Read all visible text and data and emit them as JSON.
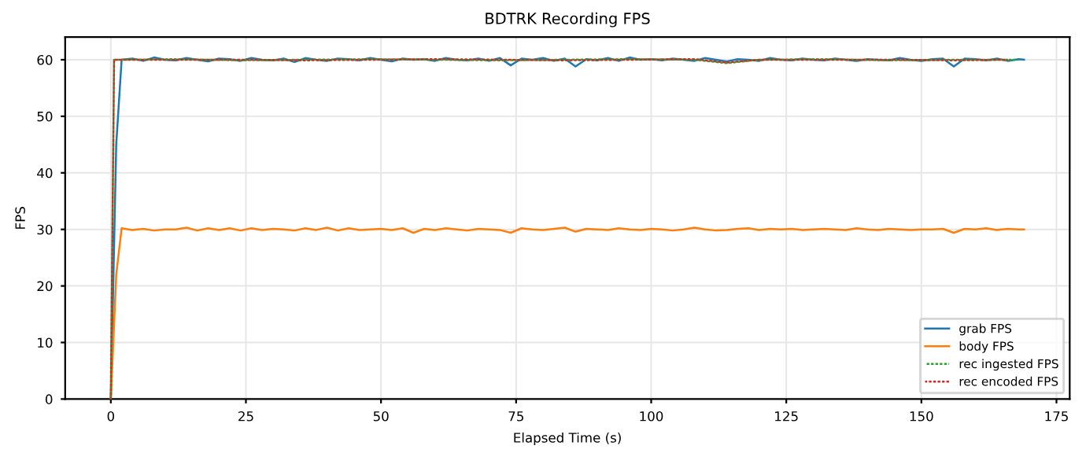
{
  "chart_data": {
    "type": "line",
    "title": "BDTRK Recording FPS",
    "xlabel": "Elapsed Time (s)",
    "ylabel": "FPS",
    "xlim": [
      -8.45,
      177.45
    ],
    "xticks": [
      0,
      25,
      50,
      75,
      100,
      125,
      150,
      175
    ],
    "ylim": [
      0,
      64
    ],
    "yticks": [
      0,
      10,
      20,
      30,
      40,
      50,
      60
    ],
    "grid": true,
    "legend": "bottom right",
    "series": [
      {
        "name": "grab FPS",
        "color": "#1f77b4",
        "line_style": "solid",
        "x": [
          0,
          1,
          2,
          4,
          6,
          8,
          10,
          12,
          14,
          16,
          18,
          20,
          22,
          24,
          26,
          28,
          30,
          32,
          34,
          36,
          38,
          40,
          42,
          44,
          46,
          48,
          50,
          52,
          54,
          56,
          58,
          60,
          62,
          64,
          66,
          68,
          70,
          72,
          74,
          76,
          78,
          80,
          82,
          84,
          86,
          88,
          90,
          92,
          94,
          96,
          98,
          100,
          102,
          104,
          106,
          108,
          110,
          112,
          114,
          116,
          118,
          120,
          122,
          124,
          126,
          128,
          130,
          132,
          134,
          136,
          138,
          140,
          142,
          144,
          146,
          148,
          150,
          152,
          154,
          156,
          158,
          160,
          162,
          164,
          166,
          168,
          169
        ],
        "values": [
          0,
          45,
          60.0,
          60.2,
          59.8,
          60.4,
          60.0,
          59.9,
          60.3,
          60.0,
          59.7,
          60.2,
          60.1,
          59.8,
          60.3,
          60.0,
          59.9,
          60.2,
          59.6,
          60.3,
          60.0,
          59.8,
          60.2,
          60.1,
          59.9,
          60.3,
          60.0,
          59.7,
          60.2,
          60.0,
          60.1,
          59.8,
          60.3,
          60.0,
          59.9,
          60.2,
          59.8,
          60.3,
          59.0,
          60.2,
          60.0,
          60.3,
          59.8,
          60.2,
          58.8,
          60.1,
          59.9,
          60.3,
          59.8,
          60.4,
          60.0,
          60.1,
          59.9,
          60.2,
          60.0,
          59.8,
          60.3,
          60.0,
          59.7,
          60.1,
          60.0,
          59.8,
          60.3,
          60.0,
          59.9,
          60.2,
          60.0,
          59.9,
          60.2,
          60.0,
          59.8,
          60.1,
          60.0,
          59.9,
          60.3,
          60.0,
          59.8,
          60.1,
          60.2,
          58.8,
          60.2,
          60.1,
          59.9,
          60.2,
          59.8,
          60.1,
          60.0
        ]
      },
      {
        "name": "body FPS",
        "color": "#ff7f0e",
        "line_style": "solid",
        "x": [
          0,
          1,
          2,
          4,
          6,
          8,
          10,
          12,
          14,
          16,
          18,
          20,
          22,
          24,
          26,
          28,
          30,
          32,
          34,
          36,
          38,
          40,
          42,
          44,
          46,
          48,
          50,
          52,
          54,
          56,
          58,
          60,
          62,
          64,
          66,
          68,
          70,
          72,
          74,
          76,
          78,
          80,
          82,
          84,
          86,
          88,
          90,
          92,
          94,
          96,
          98,
          100,
          102,
          104,
          106,
          108,
          110,
          112,
          114,
          116,
          118,
          120,
          122,
          124,
          126,
          128,
          130,
          132,
          134,
          136,
          138,
          140,
          142,
          144,
          146,
          148,
          150,
          152,
          154,
          156,
          158,
          160,
          162,
          164,
          166,
          168,
          169
        ],
        "values": [
          0,
          22,
          30.2,
          29.9,
          30.1,
          29.8,
          30.0,
          30.0,
          30.3,
          29.8,
          30.2,
          29.9,
          30.2,
          29.8,
          30.2,
          29.9,
          30.1,
          30.0,
          29.8,
          30.2,
          29.9,
          30.3,
          29.8,
          30.2,
          29.9,
          30.0,
          30.1,
          29.9,
          30.2,
          29.4,
          30.1,
          29.9,
          30.2,
          30.0,
          29.8,
          30.1,
          30.0,
          29.9,
          29.4,
          30.2,
          30.0,
          29.9,
          30.1,
          30.3,
          29.6,
          30.1,
          30.0,
          29.9,
          30.2,
          30.0,
          29.9,
          30.1,
          30.0,
          29.8,
          30.0,
          30.3,
          30.0,
          29.8,
          29.9,
          30.1,
          30.2,
          29.9,
          30.1,
          30.0,
          30.1,
          29.9,
          30.0,
          30.1,
          30.0,
          29.9,
          30.2,
          30.0,
          29.9,
          30.1,
          30.0,
          29.9,
          30.0,
          30.0,
          30.1,
          29.4,
          30.1,
          30.0,
          30.2,
          29.9,
          30.1,
          30.0,
          30.0
        ]
      },
      {
        "name": "rec ingested FPS",
        "color": "#2ca02c",
        "line_style": "dashed",
        "x": [
          0,
          0.6,
          2,
          12,
          24,
          36,
          48,
          60,
          72,
          84,
          96,
          108,
          114,
          120,
          132,
          144,
          156,
          168
        ],
        "values": [
          0,
          60.0,
          60.0,
          60.1,
          59.9,
          60.0,
          60.1,
          60.0,
          59.9,
          60.0,
          60.1,
          60.0,
          59.4,
          60.0,
          60.1,
          59.9,
          60.0,
          60.0
        ]
      },
      {
        "name": "rec encoded FPS",
        "color": "#d62728",
        "line_style": "dashed",
        "x": [
          0,
          0.6,
          2,
          12,
          24,
          36,
          48,
          60,
          72,
          84,
          96,
          108,
          114,
          120,
          132,
          144,
          156,
          166
        ],
        "values": [
          0,
          60.0,
          60.0,
          60.0,
          60.0,
          59.9,
          60.0,
          60.1,
          60.0,
          59.9,
          60.0,
          60.1,
          59.5,
          60.0,
          60.0,
          60.0,
          59.9,
          60.0
        ]
      }
    ]
  }
}
